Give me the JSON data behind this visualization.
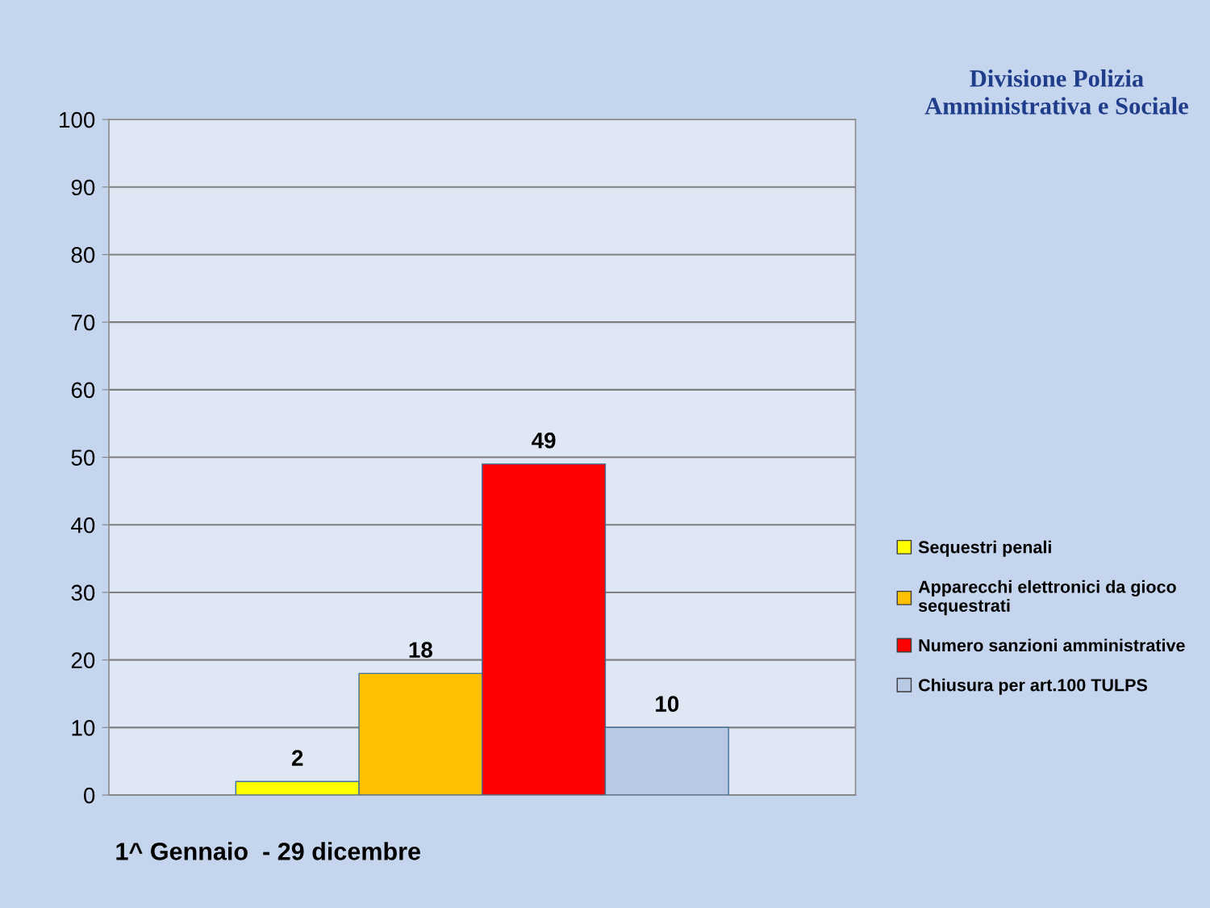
{
  "chart_data": {
    "type": "bar",
    "title": "Divisione Polizia Amministrativa e Sociale",
    "categories": [
      null
    ],
    "series": [
      {
        "name": "Sequestri penali",
        "color": "#ffff00",
        "values": [
          2
        ]
      },
      {
        "name": "Apparecchi elettronici da gioco sequestrati",
        "color": "#ffc000",
        "values": [
          18
        ]
      },
      {
        "name": "Numero sanzioni amministrative",
        "color": "#ff0000",
        "values": [
          49
        ]
      },
      {
        "name": "Chiusura per art.100 TULPS",
        "color": "#b9c9e3",
        "values": [
          10
        ]
      }
    ],
    "ylim": [
      0,
      100
    ],
    "yticks": [
      0,
      10,
      20,
      30,
      40,
      50,
      60,
      70,
      80,
      90,
      100
    ],
    "grid": "y",
    "legend": "right",
    "data_labels": true,
    "annotations": [
      "1^ Gennaio  - 29 dicembre"
    ]
  }
}
